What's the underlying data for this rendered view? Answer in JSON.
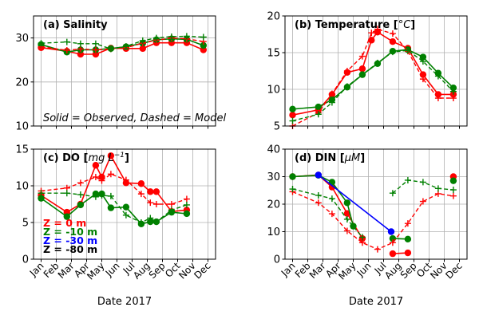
{
  "figure": {
    "xlabel": "Date 2017",
    "months": [
      "Jan",
      "Feb",
      "Mar",
      "Apr",
      "May",
      "Jun",
      "Jul",
      "Aug",
      "Sep",
      "Oct",
      "Nov",
      "Dec"
    ]
  },
  "chart_data": [
    {
      "type": "line",
      "title": "(a) Salinity",
      "ylim": [
        10,
        35
      ],
      "yticks": [
        10,
        20,
        30
      ],
      "grid": true,
      "annotation": "Solid = Observed, Dashed = Model",
      "series": [
        {
          "name": "Z = 0 m Observed",
          "depth": "0",
          "kind": "observed",
          "color": "#ff0000",
          "x": [
            1,
            2.7,
            3.6,
            4.6,
            5.6,
            6.6,
            7.7,
            8.6,
            9.6,
            10.6,
            11.7
          ],
          "y": [
            27.8,
            27.0,
            26.3,
            26.3,
            27.7,
            27.6,
            27.6,
            28.9,
            28.9,
            28.9,
            27.3
          ]
        },
        {
          "name": "Z = -10 m Observed",
          "depth": "-10",
          "kind": "observed",
          "color": "#008000",
          "x": [
            1,
            2.7,
            3.6,
            4.6,
            5.6,
            6.6,
            7.7,
            8.6,
            9.6,
            10.6,
            11.7
          ],
          "y": [
            28.5,
            26.8,
            27.3,
            27.3,
            27.6,
            28.0,
            28.8,
            29.6,
            29.8,
            29.7,
            28.3
          ]
        },
        {
          "name": "Z = 0 m Model",
          "depth": "0",
          "kind": "model",
          "color": "#ff0000",
          "x": [
            1,
            2.7,
            3.6,
            4.6,
            5.6,
            6.6,
            7.7,
            8.6,
            9.6,
            10.6,
            11.7
          ],
          "y": [
            28.0,
            27.2,
            27.5,
            27.3,
            27.5,
            27.8,
            28.8,
            29.5,
            30.0,
            29.8,
            29.2
          ]
        },
        {
          "name": "Z = -10 m Model",
          "depth": "-10",
          "kind": "model",
          "color": "#008000",
          "x": [
            1,
            2.7,
            3.6,
            4.6,
            5.6,
            6.6,
            7.7,
            8.6,
            9.6,
            10.6,
            11.7
          ],
          "y": [
            28.8,
            29.1,
            28.7,
            28.7,
            27.5,
            28.1,
            29.4,
            30.0,
            30.3,
            30.4,
            30.2
          ]
        }
      ]
    },
    {
      "type": "line",
      "title": "(b) Temperature [°C]",
      "title_main": "(b) Temperature [",
      "title_unit": "°C",
      "title_end": "]",
      "ylim": [
        5,
        20
      ],
      "yticks": [
        5,
        10,
        15,
        20
      ],
      "grid": true,
      "series": [
        {
          "name": "Z = 0 m Observed",
          "depth": "0",
          "kind": "observed",
          "color": "#ff0000",
          "x": [
            1,
            2.7,
            3.6,
            4.6,
            5.6,
            6.2,
            6.6,
            7.6,
            8.6,
            9.6,
            10.6,
            11.6
          ],
          "y": [
            6.5,
            7.2,
            9.3,
            12.3,
            12.8,
            16.7,
            17.8,
            16.5,
            15.6,
            12.0,
            9.3,
            9.3
          ]
        },
        {
          "name": "Z = -10 m Observed",
          "depth": "-10",
          "kind": "observed",
          "color": "#008000",
          "x": [
            1,
            2.7,
            3.6,
            4.6,
            5.6,
            6.6,
            7.6,
            8.6,
            9.6,
            10.6,
            11.6
          ],
          "y": [
            7.3,
            7.6,
            8.6,
            10.3,
            12.0,
            13.5,
            15.2,
            15.4,
            14.4,
            12.2,
            10.2
          ]
        },
        {
          "name": "Z = 0 m Model",
          "depth": "0",
          "kind": "model",
          "color": "#ff0000",
          "x": [
            1,
            2.7,
            3.6,
            4.6,
            5.6,
            6.2,
            6.6,
            7.6,
            8.6,
            9.6,
            10.6,
            11.6
          ],
          "y": [
            5.0,
            6.8,
            9.4,
            12.5,
            14.5,
            17.7,
            18.2,
            17.6,
            15.2,
            11.4,
            8.8,
            8.8
          ]
        },
        {
          "name": "Z = -10 m Model",
          "depth": "-10",
          "kind": "model",
          "color": "#008000",
          "x": [
            1,
            2.7,
            3.6,
            4.6,
            5.6,
            6.6,
            7.6,
            8.6,
            9.6,
            10.6,
            11.6
          ],
          "y": [
            5.7,
            6.6,
            8.2,
            10.4,
            12.0,
            13.6,
            15.1,
            15.3,
            13.8,
            11.8,
            9.7
          ]
        }
      ]
    },
    {
      "type": "line",
      "title": "(c) DO [mg L⁻¹]",
      "title_main": "(c) DO [",
      "title_unit": "mg L",
      "title_sup": "−1",
      "title_end": "]",
      "ylim": [
        0,
        15
      ],
      "yticks": [
        0,
        5,
        10,
        15
      ],
      "grid": true,
      "legend": [
        {
          "label": "Z =   0 m",
          "color": "#ff0000"
        },
        {
          "label": "Z =  -10 m",
          "color": "#008000"
        },
        {
          "label": "Z =  -30 m",
          "color": "#0000ff"
        },
        {
          "label": "Z =   -80 m",
          "color": "#000000"
        }
      ],
      "legend_location": "lower-left",
      "series": [
        {
          "name": "Z = 0 m Observed",
          "depth": "0",
          "kind": "observed",
          "color": "#ff0000",
          "x": [
            1,
            2.7,
            3.6,
            4.6,
            5.0,
            5.6,
            6.6,
            7.6,
            8.2,
            8.6,
            9.6,
            10.6
          ],
          "y": [
            8.7,
            6.4,
            7.5,
            12.8,
            11.2,
            14.1,
            10.4,
            10.3,
            9.2,
            9.2,
            6.5,
            6.7
          ]
        },
        {
          "name": "Z = -10 m Observed",
          "depth": "-10",
          "kind": "observed",
          "color": "#008000",
          "x": [
            1,
            2.7,
            3.6,
            4.6,
            5.0,
            5.6,
            6.6,
            7.6,
            8.2,
            8.6,
            9.6,
            10.6
          ],
          "y": [
            8.3,
            5.8,
            7.4,
            8.9,
            8.9,
            7.0,
            7.1,
            4.8,
            5.1,
            5.1,
            6.4,
            6.2
          ]
        },
        {
          "name": "Z = 0 m Model",
          "depth": "0",
          "kind": "model",
          "color": "#ff0000",
          "x": [
            1,
            2.7,
            3.6,
            4.6,
            5.0,
            5.6,
            6.6,
            7.6,
            8.2,
            8.6,
            9.6,
            10.6
          ],
          "y": [
            9.3,
            9.7,
            10.4,
            11.2,
            10.7,
            11.6,
            10.8,
            8.9,
            7.7,
            7.5,
            7.5,
            8.2
          ]
        },
        {
          "name": "Z = -10 m Model",
          "depth": "-10",
          "kind": "model",
          "color": "#008000",
          "x": [
            1,
            2.7,
            3.6,
            4.6,
            5.0,
            5.6,
            6.6,
            7.6,
            8.2,
            8.6,
            9.6,
            10.6
          ],
          "y": [
            9.0,
            9.0,
            8.8,
            8.5,
            8.7,
            8.6,
            6.0,
            5.0,
            5.6,
            5.1,
            6.7,
            7.4
          ]
        }
      ]
    },
    {
      "type": "line",
      "title": "(d) DIN [μM]",
      "title_main": "(d) DIN  [",
      "title_unit": "μM",
      "title_end": "]",
      "ylim": [
        0,
        40
      ],
      "yticks": [
        0,
        10,
        20,
        30,
        40
      ],
      "grid": true,
      "series": [
        {
          "name": "Z = 0 m Observed",
          "depth": "0",
          "kind": "observed",
          "color": "#ff0000",
          "x": [
            1,
            2.7,
            3.6,
            4.6,
            5.6
          ],
          "y": [
            30.0,
            30.6,
            26.2,
            16.6,
            7.5
          ]
        },
        {
          "name": "Z = 0 m Observed (late)",
          "depth": "0",
          "kind": "observed",
          "color": "#ff0000",
          "x": [
            7.6,
            8.6
          ],
          "y": [
            2.0,
            2.3
          ]
        },
        {
          "name": "Z = 0 m Observed (Dec)",
          "depth": "0",
          "kind": "observed",
          "color": "#ff0000",
          "x": [
            11.6
          ],
          "y": [
            30.0
          ]
        },
        {
          "name": "Z = -10 m Observed",
          "depth": "-10",
          "kind": "observed",
          "color": "#008000",
          "x": [
            1,
            2.7,
            3.6,
            4.6,
            5.0
          ],
          "y": [
            30.0,
            30.5,
            28.0,
            20.5,
            12.0
          ]
        },
        {
          "name": "Z = -10 m Observed (late)",
          "depth": "-10",
          "kind": "observed",
          "color": "#008000",
          "x": [
            7.6,
            8.6
          ],
          "y": [
            7.5,
            7.3
          ]
        },
        {
          "name": "Z = -10 m Observed (Dec)",
          "depth": "-10",
          "kind": "observed",
          "color": "#008000",
          "x": [
            11.6
          ],
          "y": [
            28.5
          ]
        },
        {
          "name": "Z = -30 m Observed",
          "depth": "-30",
          "kind": "observed",
          "color": "#0000ff",
          "x": [
            2.7,
            7.5
          ],
          "y": [
            30.6,
            10.0
          ]
        },
        {
          "name": "Z = 0 m Model",
          "depth": "0",
          "kind": "model",
          "color": "#ff0000",
          "x": [
            1,
            2.7,
            3.6,
            4.6,
            5.6,
            6.6,
            7.6,
            8.6,
            9.6,
            10.6,
            11.6
          ],
          "y": [
            24.5,
            20.5,
            16.5,
            10.3,
            6.0,
            3.6,
            6.0,
            13.0,
            21.0,
            23.8,
            23.0
          ]
        },
        {
          "name": "Z = -10 m Model",
          "depth": "-10",
          "kind": "model",
          "color": "#008000",
          "x": [
            1,
            2.7,
            3.6,
            4.6,
            5.6
          ],
          "y": [
            25.5,
            23.2,
            22.0,
            14.5,
            8.0
          ]
        },
        {
          "name": "Z = -10 m Model (late)",
          "depth": "-10",
          "kind": "model",
          "color": "#008000",
          "x": [
            7.6,
            8.6,
            9.6,
            10.6,
            11.6
          ],
          "y": [
            24.0,
            28.7,
            28.0,
            25.7,
            25.2
          ]
        }
      ]
    }
  ]
}
